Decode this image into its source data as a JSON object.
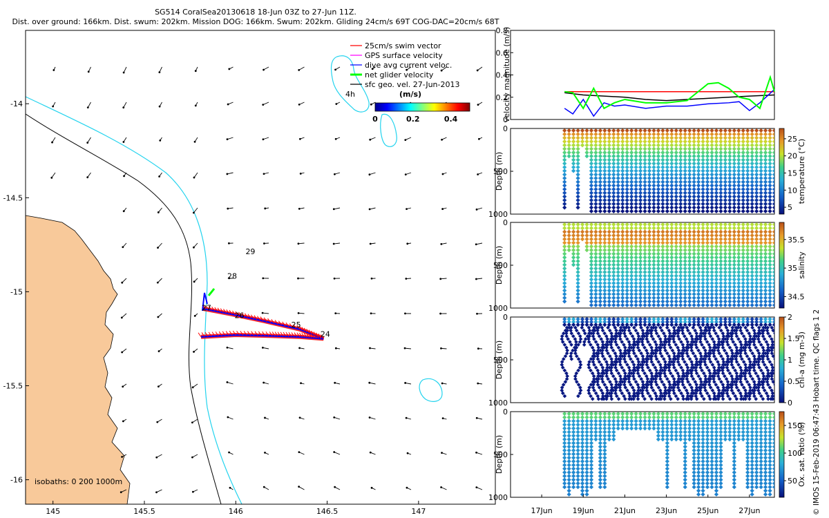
{
  "header": {
    "title_line1": "SG514 CoralSea20130618 18-Jun 03Z to 27-Jun 11Z.",
    "title_line2": "Dist. over ground: 166km. Dist. swum: 202km. Mission DOG: 166km. Swum: 202km. Gliding 24cm/s 69T COG-DAC=20cm/s 68T"
  },
  "footer_note": "© IMOS 15-Feb-2019 06:47:43 Hobart time. QC flags 1  2",
  "colors": {
    "land": "#f8c99a",
    "isobath_200": "#000000",
    "isobath_1000": "#22d3ee",
    "swim_vector": "#ff0000",
    "gps_velocity": "#ff00ff",
    "dive_avg_current": "#0000ff",
    "net_glider_velocity": "#00ff00",
    "sfc_geo_velocity": "#000000"
  },
  "chart_data": [
    {
      "type": "map",
      "x_ticks": [
        "145",
        "145.5",
        "146",
        "146.5",
        "147"
      ],
      "y_ticks": [
        "-14",
        "-14.5",
        "-15",
        "-15.5",
        "-16"
      ],
      "xlim": [
        144.85,
        147.42
      ],
      "ylim": [
        -16.13,
        -13.61
      ],
      "legend": {
        "position": "top-right",
        "entries": [
          {
            "label": "25cm/s swim vector",
            "color": "#ff0000"
          },
          {
            "label": "GPS surface velocity",
            "color": "#ff00ff"
          },
          {
            "label": "dive avg current veloc.",
            "color": "#0000ff"
          },
          {
            "label": "net glider velocity",
            "color": "#00ff00"
          },
          {
            "label": "sfc geo. vel. 27-Jun-2013",
            "color": "#000000"
          }
        ]
      },
      "colorbar": {
        "label": "(m/s)",
        "ticks": [
          "0",
          "0.2",
          "0.4"
        ],
        "range": [
          0,
          0.5
        ]
      },
      "isobath_label": "isobaths: 0   200  1000m",
      "reef_label": "4h",
      "day_labels": [
        {
          "text": "29",
          "lon": 146.08,
          "lat": -14.8
        },
        {
          "text": "28",
          "lon": 145.98,
          "lat": -14.93
        },
        {
          "text": "27",
          "lon": 145.84,
          "lat": -15.1
        },
        {
          "text": "26",
          "lon": 146.02,
          "lat": -15.14
        },
        {
          "text": "25",
          "lon": 146.33,
          "lat": -15.19
        },
        {
          "text": "24",
          "lon": 146.49,
          "lat": -15.24
        }
      ],
      "glider_track": [
        {
          "lon": 145.81,
          "lat": -15.24
        },
        {
          "lon": 146.0,
          "lat": -15.23
        },
        {
          "lon": 146.2,
          "lat": -15.235
        },
        {
          "lon": 146.35,
          "lat": -15.24
        },
        {
          "lon": 146.48,
          "lat": -15.25
        },
        {
          "lon": 146.35,
          "lat": -15.2
        },
        {
          "lon": 146.15,
          "lat": -15.155
        },
        {
          "lon": 145.98,
          "lat": -15.12
        },
        {
          "lon": 145.82,
          "lat": -15.09
        }
      ]
    },
    {
      "type": "line",
      "ylabel": "velocity magnitude (m/s)",
      "ylim": [
        0,
        0.8
      ],
      "y_ticks": [
        "0",
        "0.2",
        "0.4",
        "0.6",
        "0.8"
      ],
      "xlim": [
        15.5,
        28.2
      ],
      "series": [
        {
          "color": "#ff0000",
          "x": [
            18.1,
            28.2
          ],
          "values": [
            0.25,
            0.25
          ]
        },
        {
          "color": "#000000",
          "x": [
            18.1,
            19,
            20,
            21,
            22,
            23,
            24,
            25,
            26,
            27,
            28.2
          ],
          "values": [
            0.24,
            0.22,
            0.21,
            0.2,
            0.18,
            0.17,
            0.18,
            0.19,
            0.2,
            0.21,
            0.22
          ]
        },
        {
          "color": "#0000ff",
          "x": [
            18.1,
            18.5,
            19,
            19.5,
            20,
            20.5,
            21,
            22,
            23,
            24,
            25,
            26,
            26.5,
            27,
            27.5,
            28.2
          ],
          "values": [
            0.1,
            0.05,
            0.18,
            0.03,
            0.15,
            0.12,
            0.13,
            0.1,
            0.12,
            0.12,
            0.14,
            0.15,
            0.16,
            0.08,
            0.15,
            0.27
          ]
        },
        {
          "color": "#00ff00",
          "x": [
            18.1,
            18.5,
            19,
            19.5,
            20,
            20.5,
            21,
            22,
            23,
            24,
            25,
            25.5,
            26,
            26.5,
            27,
            27.5,
            28,
            28.2
          ],
          "values": [
            0.25,
            0.24,
            0.1,
            0.28,
            0.1,
            0.15,
            0.18,
            0.15,
            0.15,
            0.17,
            0.32,
            0.33,
            0.28,
            0.2,
            0.18,
            0.1,
            0.38,
            0.25
          ]
        }
      ]
    },
    {
      "type": "heatmap",
      "ylabel": "Depth (m)",
      "ylim": [
        1000,
        0
      ],
      "y_ticks": [
        "0",
        "500",
        "1000"
      ],
      "colorbar": {
        "label": "temperature (°C)",
        "ticks": [
          "5",
          "10",
          "15",
          "20",
          "25"
        ],
        "range": [
          3,
          28
        ]
      }
    },
    {
      "type": "heatmap",
      "ylabel": "Depth (m)",
      "ylim": [
        1000,
        0
      ],
      "y_ticks": [
        "0",
        "500",
        "1000"
      ],
      "colorbar": {
        "label": "salinity",
        "ticks": [
          "34.5",
          "35",
          "35.5"
        ],
        "range": [
          34.3,
          35.8
        ]
      }
    },
    {
      "type": "heatmap",
      "ylabel": "Depth (m)",
      "ylim": [
        1000,
        0
      ],
      "y_ticks": [
        "0",
        "500",
        "1000"
      ],
      "colorbar": {
        "label": "chl-a (mg m-3)",
        "ticks": [
          "0",
          "0.5",
          "1",
          "1.5",
          "2"
        ],
        "range": [
          0,
          2
        ]
      }
    },
    {
      "type": "heatmap",
      "ylabel": "Depth (m)",
      "ylim": [
        1000,
        0
      ],
      "y_ticks": [
        "0",
        "500",
        "1000"
      ],
      "x_ticks": [
        "17Jun",
        "19Jun",
        "21Jun",
        "23Jun",
        "25Jun",
        "27Jun"
      ],
      "xlim": [
        15.5,
        28.2
      ],
      "colorbar": {
        "label": "Ox. sat. ratio (%)",
        "ticks": [
          "50",
          "100",
          "150"
        ],
        "range": [
          20,
          175
        ]
      }
    }
  ]
}
